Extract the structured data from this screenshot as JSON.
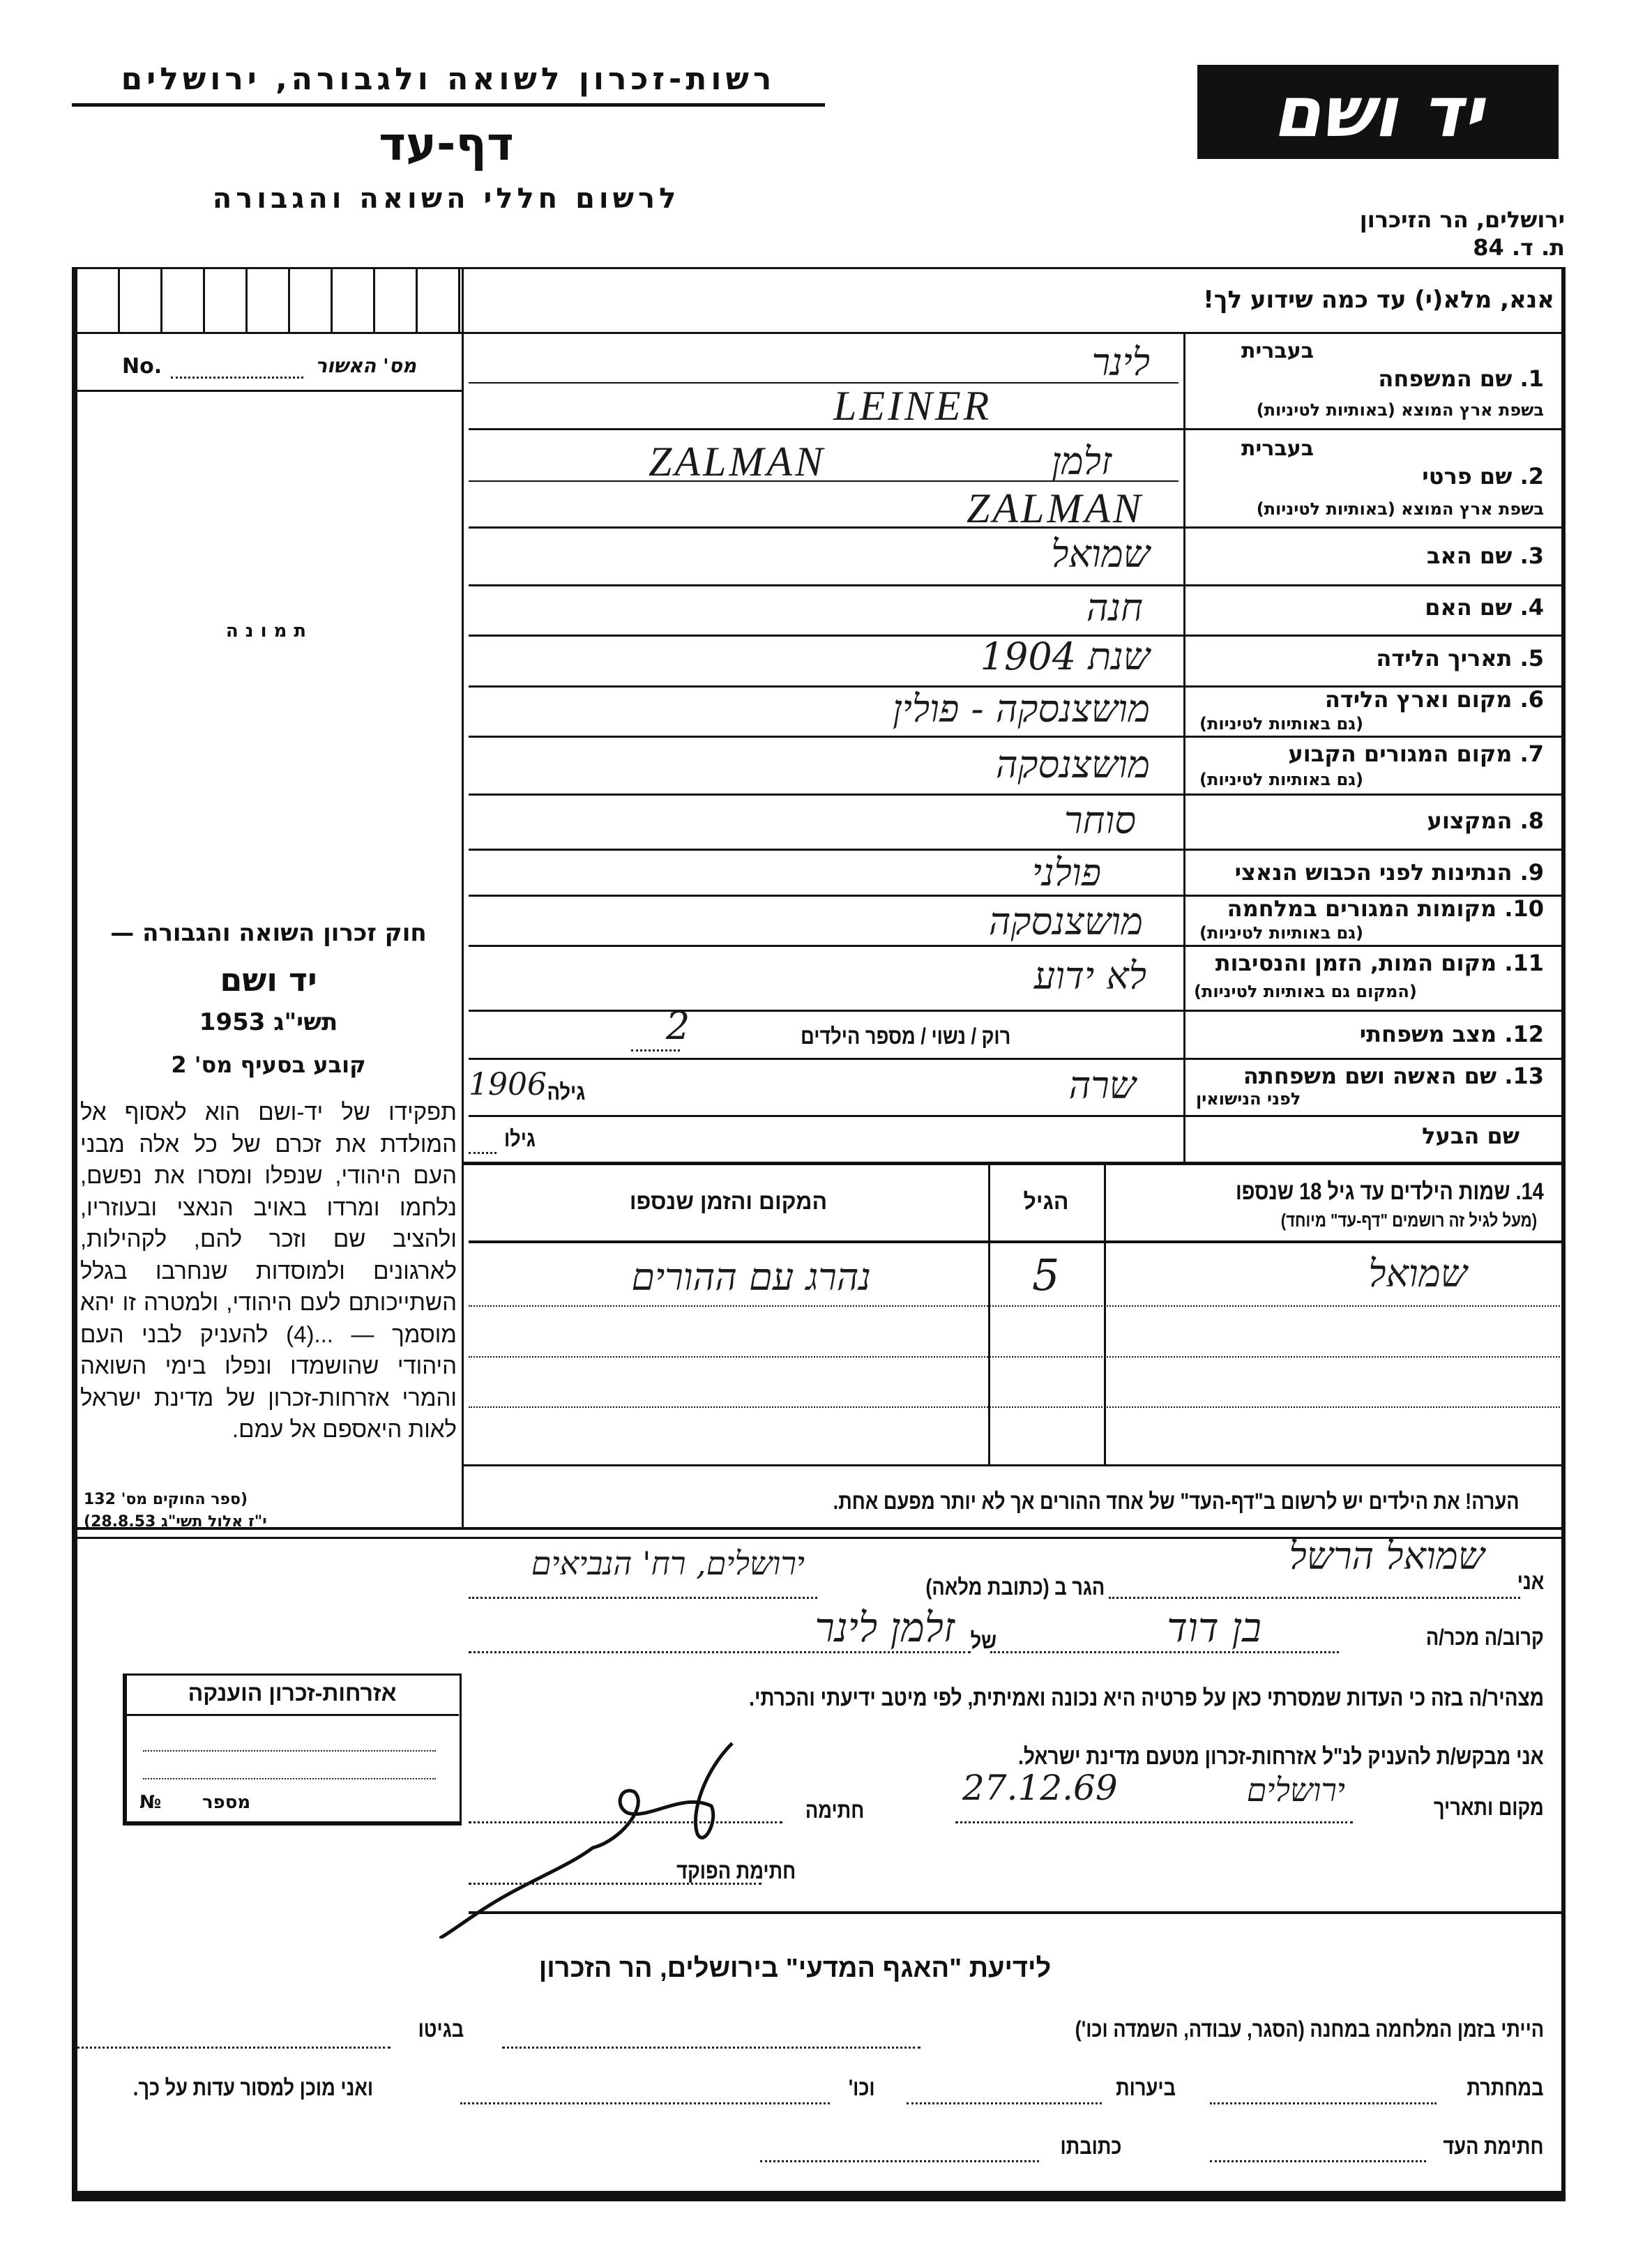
{
  "header": {
    "org": "רשות-זכרון לשואה ולגבורה, ירושלים",
    "title": "דף-עד",
    "subtitle": "לרשום חללי השואה והגבורה",
    "logo_text": "יד ושם",
    "address": "ירושלים, הר הזיכרון",
    "po_box": "ת. ד. 84"
  },
  "instruction": "אנא, מלא(י) עד כמה שידוע לך!",
  "left_panel": {
    "approval_no_label": "No.",
    "approval_he_label": "מס' האשור",
    "photo_label": "תמונה",
    "law_title": "חוק זכרון השואה והגבורה —",
    "law_name": "יד ושם",
    "law_year": "תשי\"ג 1953",
    "law_clause": "קובע בסעיף מס' 2",
    "law_text": "תפקידו של יד-ושם הוא לאסוף אל המולדת את זכרם של כל אלה מבני העם היהודי, שנפלו ומסרו את נפשם, נלחמו ומרדו באויב הנאצי ובעוזריו, ולהציב שם וזכר להם, לקהילות, לארגונים ולמוסדות שנחרבו בגלל השתייכותם לעם היהודי, ולמטרה זו יהא מוסמך — ...(4) להעניק לבני העם היהודי שהושמדו ונפלו בימי השואה והמרי אזרחות-זכרון של מדינת ישראל לאות היאספם אל עמם.",
    "law_ref_1": "(ספר החוקים מס' 132",
    "law_ref_2": "י\"ז אלול תשי\"ג 28.8.53)"
  },
  "fields": [
    {
      "num": "1.",
      "label": "שם המשפחה",
      "sub_top": "בעברית",
      "sub": "בשפת ארץ המוצא (באותיות לטיניות)",
      "value_he": "לינר",
      "value_latin": "LEINER"
    },
    {
      "num": "2.",
      "label": "שם פרטי",
      "sub_top": "בעברית",
      "sub": "בשפת ארץ המוצא (באותיות לטיניות)",
      "value_he": "זלמן",
      "value_he_note": "ZALMAN",
      "value_latin": "ZALMAN"
    },
    {
      "num": "3.",
      "label": "שם האב",
      "value": "שמואל"
    },
    {
      "num": "4.",
      "label": "שם האם",
      "value": "חנה"
    },
    {
      "num": "5.",
      "label": "תאריך הלידה",
      "value": "שנת 1904"
    },
    {
      "num": "6.",
      "label": "מקום וארץ הלידה",
      "sub": "(גם באותיות לטיניות)",
      "value": "מושצנסקה - פולין"
    },
    {
      "num": "7.",
      "label": "מקום המגורים הקבוע",
      "sub": "(גם באותיות לטיניות)",
      "value": "מושצנסקה"
    },
    {
      "num": "8.",
      "label": "המקצוע",
      "value": "סוחר"
    },
    {
      "num": "9.",
      "label": "הנתינות לפני הכבוש הנאצי",
      "value": "פולני"
    },
    {
      "num": "10.",
      "label": "מקומות המגורים במלחמה",
      "sub": "(גם באותיות לטיניות)",
      "value": "מושצנסקה"
    },
    {
      "num": "11.",
      "label": "מקום המות, הזמן והנסיבות",
      "sub": "(המקום גם באותיות לטיניות)",
      "value": "לא ידוע"
    },
    {
      "num": "12.",
      "label": "מצב משפחתי",
      "options": "רוק / נשוי / מספר הילדים",
      "children_count": "2"
    },
    {
      "num": "13.",
      "label": "שם האשה ושם משפחתה",
      "sub": "לפני הנישואין",
      "value": "שרה",
      "age_label": "גילה",
      "age_value": "1906"
    },
    {
      "label": "שם הבעל",
      "age_label": "גילו"
    }
  ],
  "children": {
    "num": "14.",
    "label": "שמות הילדים עד גיל 18 שנספו",
    "sub": "(מעל לגיל זה רושמים \"דף-עד\" מיוחד)",
    "col_age": "הגיל",
    "col_place": "המקום והזמן שנספו",
    "rows": [
      {
        "name": "שמואל",
        "age": "5",
        "place": "נהרג עם ההורים"
      }
    ]
  },
  "note": "הערה! את הילדים יש לרשום ב\"דף-העד\" של אחד ההורים אך לא יותר מפעם אחת.",
  "attestation": {
    "i_label": "אני",
    "i_value": "שמואל הרשל",
    "residing_label": "הגר ב (כתובת מלאה)",
    "address_value": "ירושלים, רח' הנביאים",
    "relation_label": "קרוב/ה מכר/ה",
    "relation_value": "בן דוד",
    "of_label": "של",
    "of_value": "זלמן לינר",
    "declaration": "מצהיר/ה בזה כי העדות שמסרתי כאן על פרטיה היא נכונה ואמיתית, לפי מיטב ידיעתי והכרתי.",
    "request": "אני מבקש/ת להעניק לנ\"ל אזרחות-זכרון מטעם מדינת ישראל.",
    "place_date_label": "מקום ותאריך",
    "place_value": "ירושלים",
    "date_value": "27.12.69",
    "signature_label": "חתימה",
    "officer_label": "חתימת הפוקד"
  },
  "citizenship_box": {
    "title": "אזרחות-זכרון הוענקה",
    "number_label": "מספר",
    "number_prefix": "№"
  },
  "bottom": {
    "title": "לידיעת \"האגף המדעי\" בירושלים, הר הזכרון",
    "line1": "הייתי בזמן המלחמה במחנה (הסגר, עבודה, השמדה וכו')",
    "line1_end": "בגיטו",
    "line2_a": "במחתרת",
    "line2_b": "ביערות",
    "line2_c": "וכו'",
    "line2_end": "ואני מוכן למסור עדות על כך.",
    "line3_a": "חתימת העד",
    "line3_b": "כתובתו"
  }
}
